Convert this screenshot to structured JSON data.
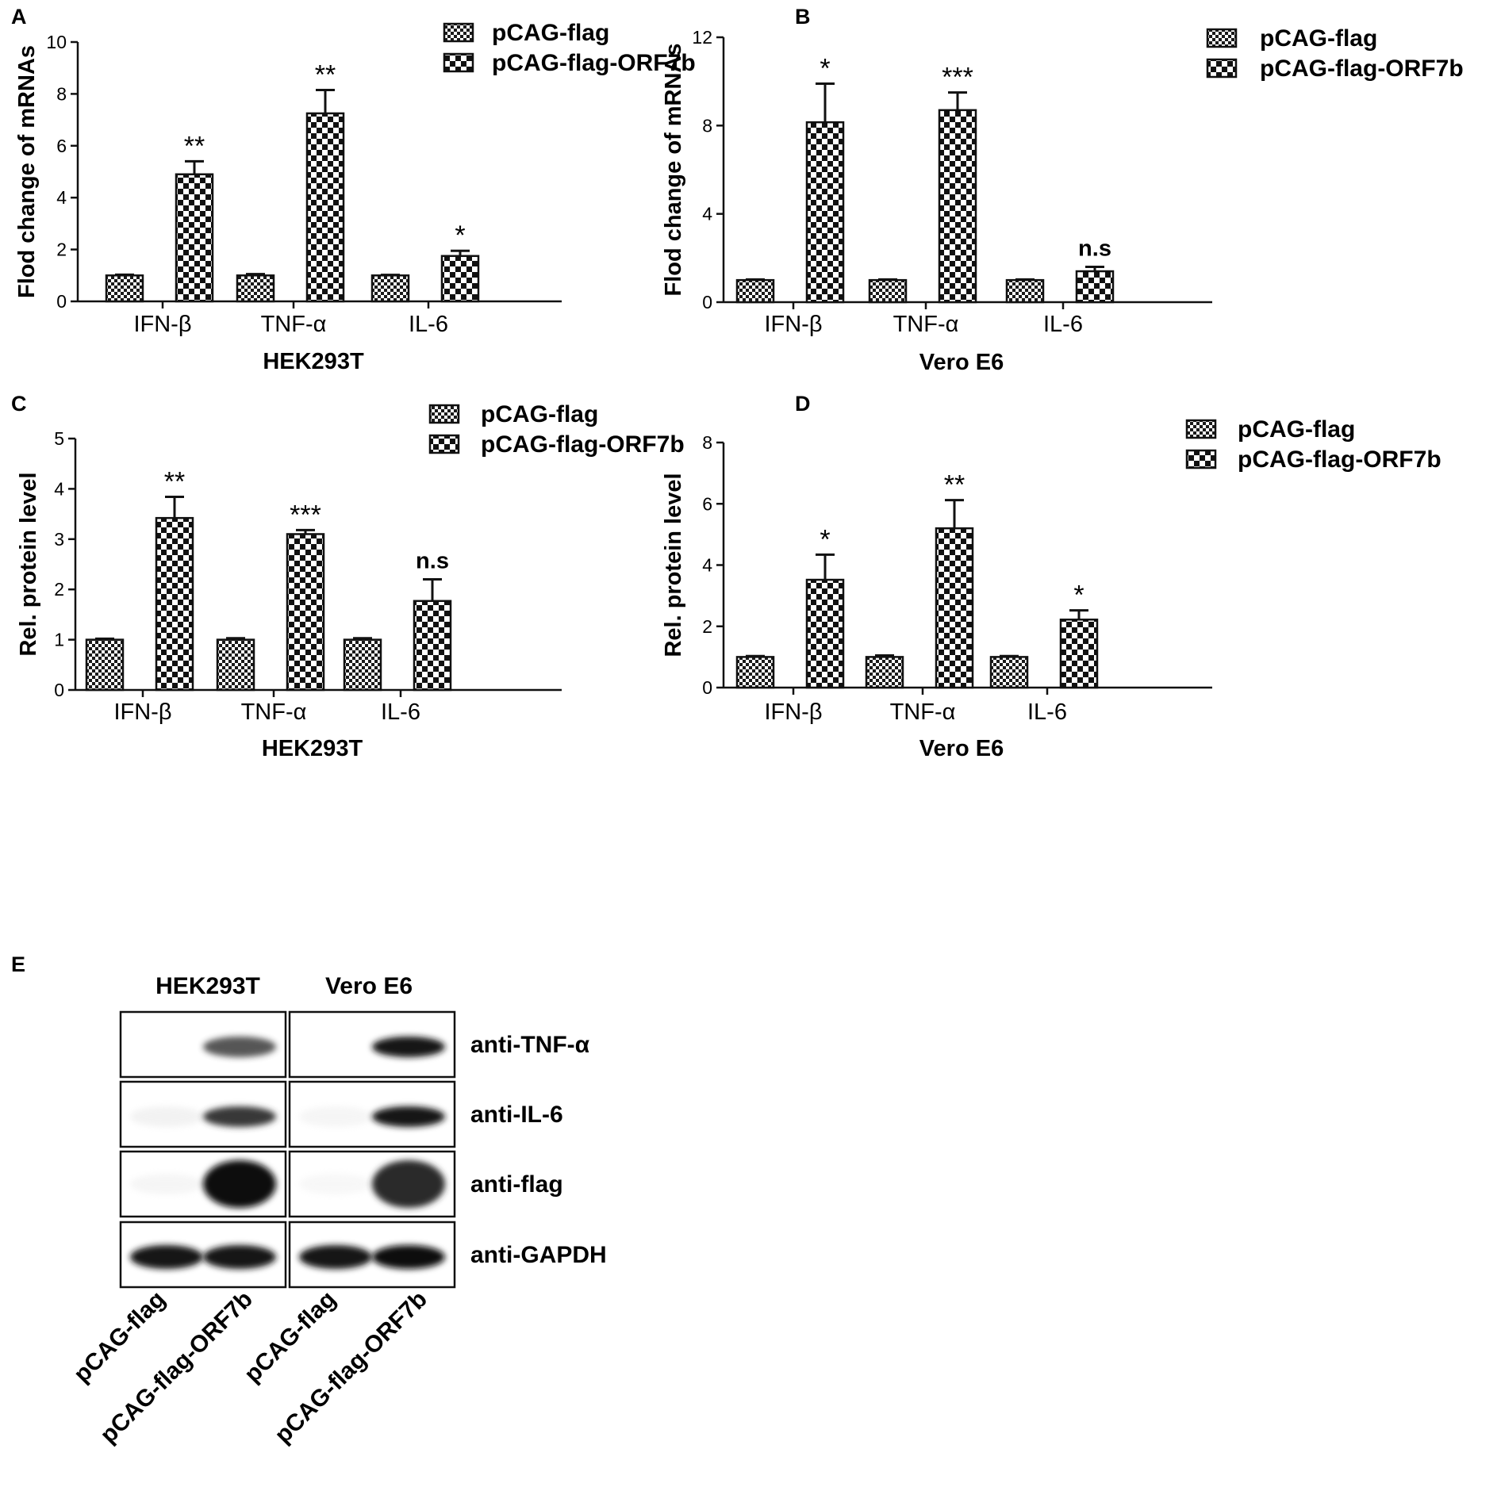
{
  "chart_data": [
    {
      "panel": "A",
      "type": "bar",
      "xlabel": "HEK293T",
      "ylabel": "Flod change of mRNAs",
      "categories": [
        "IFN-β",
        "TNF-α",
        "IL-6"
      ],
      "ylim": [
        0,
        10
      ],
      "yticks": [
        "0",
        "2",
        "4",
        "6",
        "8",
        "10"
      ],
      "series": [
        {
          "name": "pCAG-flag",
          "values": [
            1.0,
            1.0,
            1.0
          ],
          "errors": [
            0.03,
            0.05,
            0.02
          ]
        },
        {
          "name": "pCAG-flag-ORF7b",
          "values": [
            4.9,
            7.25,
            1.75
          ],
          "errors": [
            0.5,
            0.9,
            0.2
          ]
        }
      ],
      "annotations": [
        "**",
        "**",
        "*"
      ],
      "legend": "top-right"
    },
    {
      "panel": "B",
      "type": "bar",
      "xlabel": "Vero E6",
      "ylabel": "Flod change of mRNAs",
      "categories": [
        "IFN-β",
        "TNF-α",
        "IL-6"
      ],
      "ylim": [
        0,
        12
      ],
      "yticks": [
        "0",
        "4",
        "8",
        "12"
      ],
      "series": [
        {
          "name": "pCAG-flag",
          "values": [
            1.0,
            1.0,
            1.0
          ],
          "errors": [
            0.03,
            0.03,
            0.03
          ]
        },
        {
          "name": "pCAG-flag-ORF7b",
          "values": [
            8.15,
            8.7,
            1.4
          ],
          "errors": [
            1.75,
            0.8,
            0.2
          ]
        }
      ],
      "annotations": [
        "*",
        "***",
        "n.s"
      ],
      "legend": "top-right"
    },
    {
      "panel": "C",
      "type": "bar",
      "xlabel": "HEK293T",
      "ylabel": "Rel. protein level",
      "categories": [
        "IFN-β",
        "TNF-α",
        "IL-6"
      ],
      "ylim": [
        0,
        5
      ],
      "yticks": [
        "0",
        "1",
        "2",
        "3",
        "4",
        "5"
      ],
      "series": [
        {
          "name": "pCAG-flag",
          "values": [
            1.0,
            1.0,
            1.0
          ],
          "errors": [
            0.02,
            0.03,
            0.03
          ]
        },
        {
          "name": "pCAG-flag-ORF7b",
          "values": [
            3.42,
            3.1,
            1.77
          ],
          "errors": [
            0.42,
            0.08,
            0.43
          ]
        }
      ],
      "annotations": [
        "**",
        "***",
        "n.s"
      ],
      "legend": "top-right"
    },
    {
      "panel": "D",
      "type": "bar",
      "xlabel": "Vero E6",
      "ylabel": "Rel. protein level",
      "categories": [
        "IFN-β",
        "TNF-α",
        "IL-6"
      ],
      "ylim": [
        0,
        8
      ],
      "yticks": [
        "0",
        "2",
        "4",
        "6",
        "8"
      ],
      "series": [
        {
          "name": "pCAG-flag",
          "values": [
            1.0,
            1.0,
            1.0
          ],
          "errors": [
            0.03,
            0.05,
            0.03
          ]
        },
        {
          "name": "pCAG-flag-ORF7b",
          "values": [
            3.52,
            5.2,
            2.22
          ],
          "errors": [
            0.82,
            0.92,
            0.3
          ]
        }
      ],
      "annotations": [
        "*",
        "**",
        "*"
      ],
      "legend": "top-right"
    }
  ],
  "blot": {
    "panel": "E",
    "cell_lines": [
      "HEK293T",
      "Vero E6"
    ],
    "antibodies": [
      "anti-TNF-α",
      "anti-IL-6",
      "anti-flag",
      "anti-GAPDH"
    ],
    "lanes": [
      "pCAG-flag",
      "pCAG-flag-ORF7b",
      "pCAG-flag",
      "pCAG-flag-ORF7b"
    ],
    "band_intensity": [
      [
        0.0,
        0.7,
        0.0,
        0.95
      ],
      [
        0.08,
        0.8,
        0.05,
        0.95
      ],
      [
        0.05,
        1.0,
        0.03,
        0.85
      ],
      [
        0.95,
        0.95,
        0.95,
        1.0
      ]
    ]
  },
  "colors": {
    "ink": "#111111",
    "background": "#ffffff"
  }
}
